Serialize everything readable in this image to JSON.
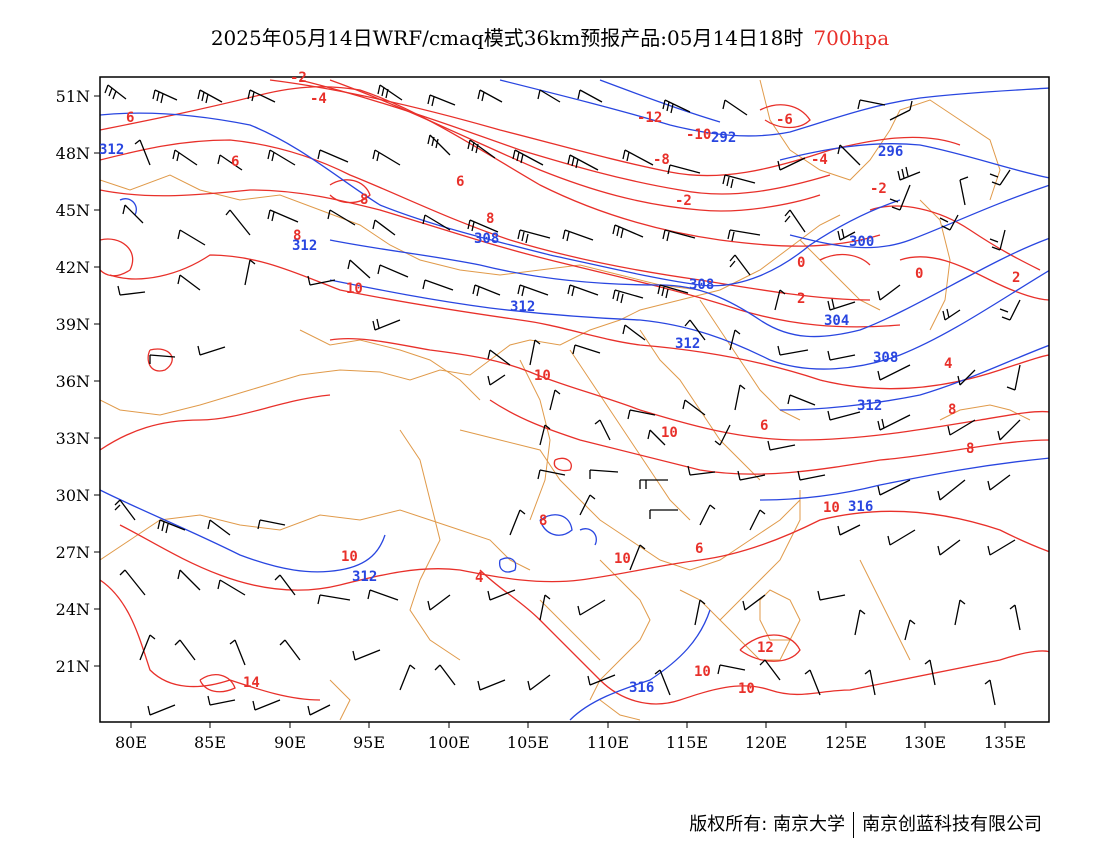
{
  "title": {
    "main": "2025年05月14日WRF/cmaq模式36km预报产品:05月14日18时",
    "level": "700hpa"
  },
  "footer": {
    "copyright": "版权所有: 南京大学",
    "company": "南京创蓝科技有限公司"
  },
  "map": {
    "lon_range": [
      78,
      138
    ],
    "lat_range": [
      17.5,
      52
    ],
    "x_ticks": [
      "80E",
      "85E",
      "90E",
      "95E",
      "100E",
      "105E",
      "110E",
      "115E",
      "120E",
      "125E",
      "130E",
      "135E"
    ],
    "y_ticks": [
      "51N",
      "48N",
      "45N",
      "42N",
      "39N",
      "36N",
      "33N",
      "30N",
      "27N",
      "24N",
      "21N"
    ],
    "colors": {
      "temperature": "#e8302a",
      "geopotential": "#2946e0",
      "boundary": "#e09a4a",
      "wind": "#000000",
      "level_text": "#e8302a"
    },
    "temperature_labels": [
      "-12",
      "-10",
      "-8",
      "-6",
      "-4",
      "-2",
      "-2",
      "0",
      "2",
      "-4",
      "-2",
      "0",
      "2",
      "4",
      "6",
      "6",
      "8",
      "8",
      "6",
      "10",
      "10",
      "8",
      "10",
      "6",
      "8",
      "10",
      "10",
      "12",
      "10",
      "10",
      "14",
      "6",
      "8",
      "10",
      "8",
      "4"
    ],
    "height_labels": [
      "312",
      "312",
      "308",
      "312",
      "292",
      "296",
      "300",
      "304",
      "308",
      "312",
      "308",
      "312",
      "316",
      "312",
      "316"
    ]
  }
}
